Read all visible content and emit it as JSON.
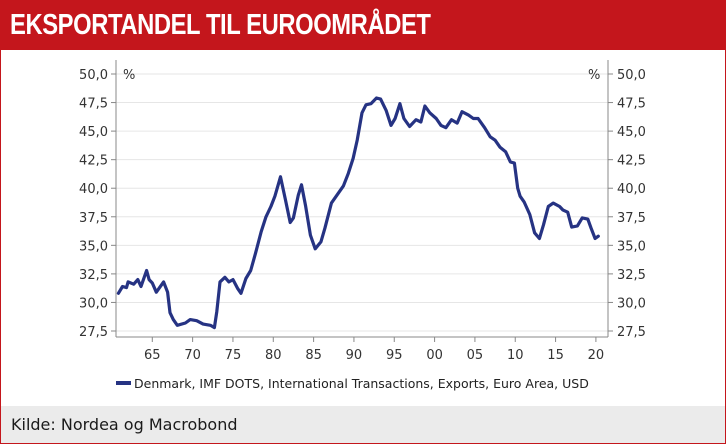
{
  "header": {
    "title": "EKSPORTANDEL TIL EUROOMRÅDET"
  },
  "footer": {
    "source": "Kilde: Nordea og Macrobond"
  },
  "colors": {
    "brand": "#c4161c",
    "series": "#263383",
    "grid": "#e6e6e6",
    "footer_bg": "#ebebeb"
  },
  "chart_data": {
    "type": "line",
    "title": "EKSPORTANDEL TIL EUROOMRÅDET",
    "xlabel": "",
    "ylabel_left": "%",
    "ylabel_right": "%",
    "ylim": [
      26.5,
      50.0
    ],
    "xlim": [
      1960.5,
      2021.5
    ],
    "grid": true,
    "legend_position": "bottom",
    "y_ticks": [
      "27,5",
      "30,0",
      "32,5",
      "35,0",
      "37,5",
      "40,0",
      "42,5",
      "45,0",
      "47,5",
      "50,0"
    ],
    "y_tick_values": [
      27.5,
      30.0,
      32.5,
      35.0,
      37.5,
      40.0,
      42.5,
      45.0,
      47.5,
      50.0
    ],
    "x_ticks": [
      "65",
      "70",
      "75",
      "80",
      "85",
      "90",
      "95",
      "00",
      "05",
      "10",
      "15",
      "20"
    ],
    "x_tick_values": [
      1965,
      1970,
      1975,
      1980,
      1985,
      1990,
      1995,
      2000,
      2005,
      2010,
      2015,
      2020
    ],
    "series": [
      {
        "name": "Denmark, IMF DOTS, International Transactions, Exports, Euro Area, USD",
        "x": [
          1960.8,
          1961.3,
          1961.8,
          1962.0,
          1962.7,
          1963.2,
          1963.6,
          1964.3,
          1964.6,
          1965.0,
          1965.5,
          1966.4,
          1966.9,
          1967.2,
          1967.6,
          1968.1,
          1969.1,
          1969.7,
          1970.5,
          1971.3,
          1972.2,
          1972.7,
          1973.0,
          1973.4,
          1974.0,
          1974.5,
          1975.0,
          1975.6,
          1976.0,
          1976.6,
          1977.2,
          1977.8,
          1978.5,
          1979.1,
          1979.7,
          1980.2,
          1980.9,
          1981.5,
          1982.1,
          1982.5,
          1983.1,
          1983.5,
          1984.0,
          1984.6,
          1985.2,
          1985.9,
          1986.4,
          1987.2,
          1987.9,
          1988.7,
          1989.3,
          1989.9,
          1990.4,
          1991.0,
          1991.5,
          1992.1,
          1992.8,
          1993.3,
          1994.0,
          1994.6,
          1995.1,
          1995.7,
          1996.2,
          1996.9,
          1997.7,
          1998.3,
          1998.8,
          1999.4,
          2000.2,
          2000.8,
          2001.4,
          2002.1,
          2002.8,
          2003.4,
          2004.2,
          2004.8,
          2005.4,
          2006.2,
          2006.9,
          2007.5,
          2008.1,
          2008.8,
          2009.4,
          2009.9,
          2010.3,
          2010.6,
          2011.1,
          2011.8,
          2012.4,
          2013.0,
          2013.5,
          2014.1,
          2014.7,
          2015.5,
          2015.9,
          2016.5,
          2017.0,
          2017.7,
          2018.3,
          2019.0,
          2019.4,
          2019.9,
          2020.3
        ],
        "values": [
          30.8,
          31.4,
          31.3,
          31.8,
          31.6,
          32.0,
          31.4,
          32.8,
          32.0,
          31.7,
          30.9,
          31.8,
          30.9,
          29.1,
          28.5,
          28.0,
          28.2,
          28.5,
          28.4,
          28.1,
          28.0,
          27.8,
          29.2,
          31.8,
          32.2,
          31.8,
          32.0,
          31.2,
          30.8,
          32.1,
          32.8,
          34.3,
          36.2,
          37.5,
          38.4,
          39.3,
          41.0,
          39.0,
          37.0,
          37.4,
          39.4,
          40.3,
          38.5,
          35.9,
          34.7,
          35.3,
          36.5,
          38.7,
          39.4,
          40.2,
          41.3,
          42.6,
          44.2,
          46.6,
          47.3,
          47.4,
          47.9,
          47.8,
          46.8,
          45.5,
          46.1,
          47.4,
          46.1,
          45.4,
          46.0,
          45.8,
          47.2,
          46.6,
          46.1,
          45.5,
          45.3,
          46.0,
          45.7,
          46.7,
          46.4,
          46.1,
          46.1,
          45.3,
          44.5,
          44.2,
          43.6,
          43.2,
          42.3,
          42.2,
          40.0,
          39.3,
          38.8,
          37.7,
          36.1,
          35.6,
          36.8,
          38.4,
          38.7,
          38.4,
          38.1,
          37.9,
          36.6,
          36.7,
          37.4,
          37.3,
          36.5,
          35.6,
          35.8
        ]
      }
    ]
  }
}
